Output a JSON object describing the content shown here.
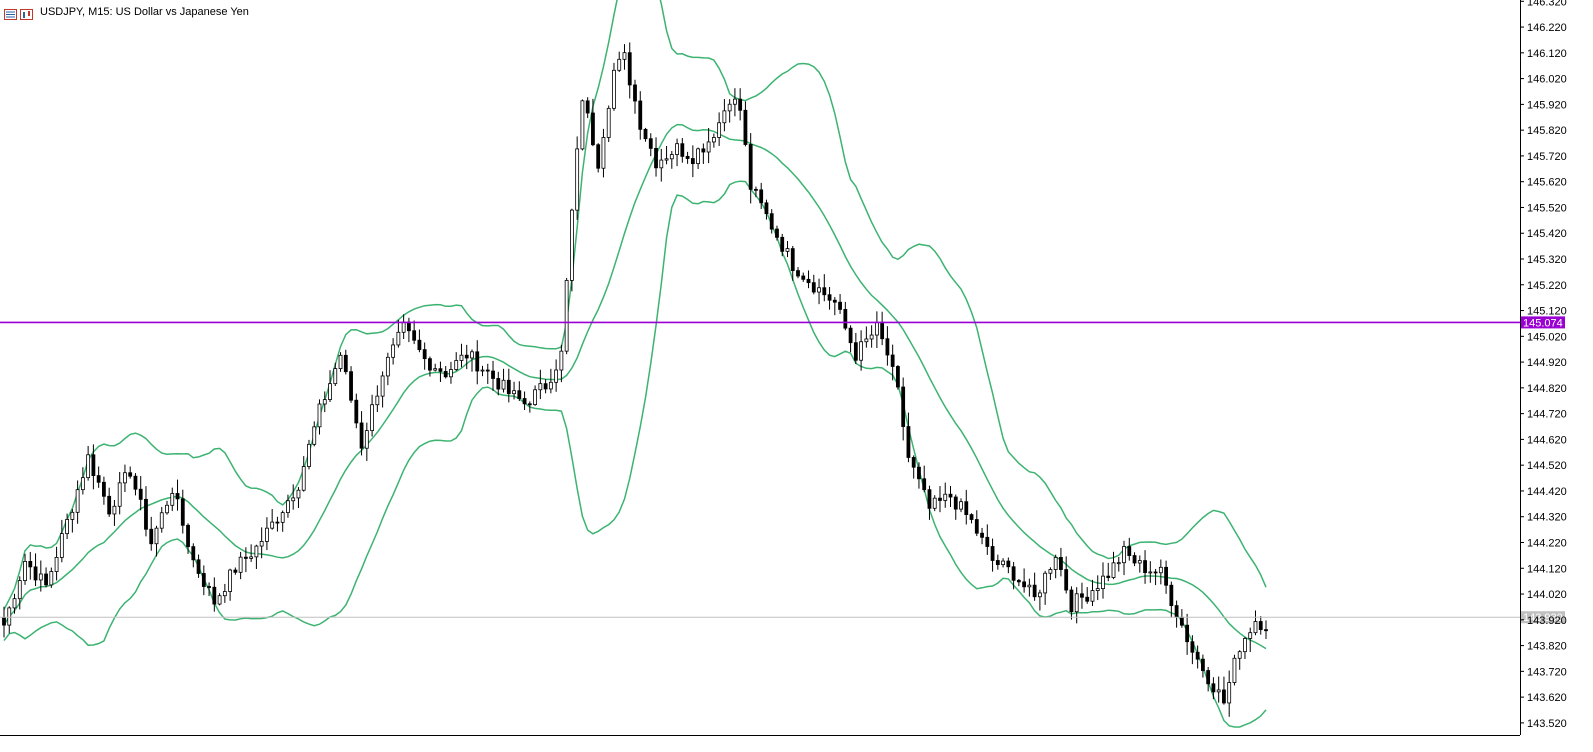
{
  "header": {
    "title": "USDJPY, M15:  US Dollar vs Japanese Yen",
    "icons": [
      "quotes-list-icon",
      "chart-type-icon"
    ]
  },
  "colors": {
    "bullish_body": "#ffffff",
    "bearish_body": "#000000",
    "candle_outline": "#000000",
    "bollinger": "#3cb371",
    "price_level_line": "#9b00d3",
    "price_level_label_bg": "#9b00d3",
    "bid_line": "#c0c0c0",
    "bid_label_bg": "#c0c0c0"
  },
  "chart_data": {
    "type": "candlestick",
    "symbol": "USDJPY",
    "timeframe": "M15",
    "description": "US Dollar vs Japanese Yen",
    "ylim": [
      143.473,
      146.325
    ],
    "y_ticks": [
      "146.320",
      "146.220",
      "146.120",
      "146.020",
      "145.920",
      "145.820",
      "145.720",
      "145.620",
      "145.520",
      "145.420",
      "145.320",
      "145.220",
      "145.120",
      "145.020",
      "144.920",
      "144.820",
      "144.720",
      "144.620",
      "144.520",
      "144.420",
      "144.320",
      "144.220",
      "144.120",
      "144.020",
      "143.920",
      "143.820",
      "143.720",
      "143.620",
      "143.520"
    ],
    "price_level": {
      "value": 145.074,
      "label": "145.074"
    },
    "bid_level": {
      "value": 143.93,
      "label": "143.930"
    },
    "indicator": "Bollinger Bands",
    "close_anchors": [
      [
        0,
        143.9
      ],
      [
        4,
        144.15
      ],
      [
        8,
        144.05
      ],
      [
        12,
        144.3
      ],
      [
        16,
        144.55
      ],
      [
        20,
        144.35
      ],
      [
        24,
        144.5
      ],
      [
        28,
        144.22
      ],
      [
        32,
        144.43
      ],
      [
        36,
        144.15
      ],
      [
        40,
        143.99
      ],
      [
        44,
        144.12
      ],
      [
        48,
        144.2
      ],
      [
        52,
        144.32
      ],
      [
        56,
        144.45
      ],
      [
        60,
        144.73
      ],
      [
        64,
        144.95
      ],
      [
        68,
        144.6
      ],
      [
        72,
        144.88
      ],
      [
        76,
        145.05
      ],
      [
        80,
        144.93
      ],
      [
        84,
        144.88
      ],
      [
        88,
        144.95
      ],
      [
        92,
        144.88
      ],
      [
        96,
        144.8
      ],
      [
        99,
        144.76
      ],
      [
        103,
        144.83
      ],
      [
        106,
        144.95
      ],
      [
        108,
        145.5
      ],
      [
        110,
        145.95
      ],
      [
        113,
        145.7
      ],
      [
        116,
        146.05
      ],
      [
        118,
        146.1
      ],
      [
        121,
        145.85
      ],
      [
        124,
        145.7
      ],
      [
        128,
        145.75
      ],
      [
        131,
        145.72
      ],
      [
        134,
        145.78
      ],
      [
        136,
        145.85
      ],
      [
        138,
        145.95
      ],
      [
        140,
        145.9
      ],
      [
        142,
        145.6
      ],
      [
        146,
        145.45
      ],
      [
        150,
        145.3
      ],
      [
        154,
        145.22
      ],
      [
        158,
        145.15
      ],
      [
        162,
        144.95
      ],
      [
        166,
        145.05
      ],
      [
        168,
        144.95
      ],
      [
        170,
        144.8
      ],
      [
        172,
        144.55
      ],
      [
        176,
        144.35
      ],
      [
        180,
        144.4
      ],
      [
        184,
        144.3
      ],
      [
        188,
        144.15
      ],
      [
        192,
        144.1
      ],
      [
        196,
        144.0
      ],
      [
        200,
        144.18
      ],
      [
        203,
        143.98
      ],
      [
        206,
        144.02
      ],
      [
        210,
        144.1
      ],
      [
        213,
        144.18
      ],
      [
        216,
        144.13
      ],
      [
        220,
        144.1
      ],
      [
        223,
        143.95
      ],
      [
        226,
        143.8
      ],
      [
        229,
        143.7
      ],
      [
        232,
        143.6
      ],
      [
        235,
        143.82
      ],
      [
        238,
        143.92
      ],
      [
        240,
        143.9
      ]
    ],
    "candle_count": 241
  }
}
